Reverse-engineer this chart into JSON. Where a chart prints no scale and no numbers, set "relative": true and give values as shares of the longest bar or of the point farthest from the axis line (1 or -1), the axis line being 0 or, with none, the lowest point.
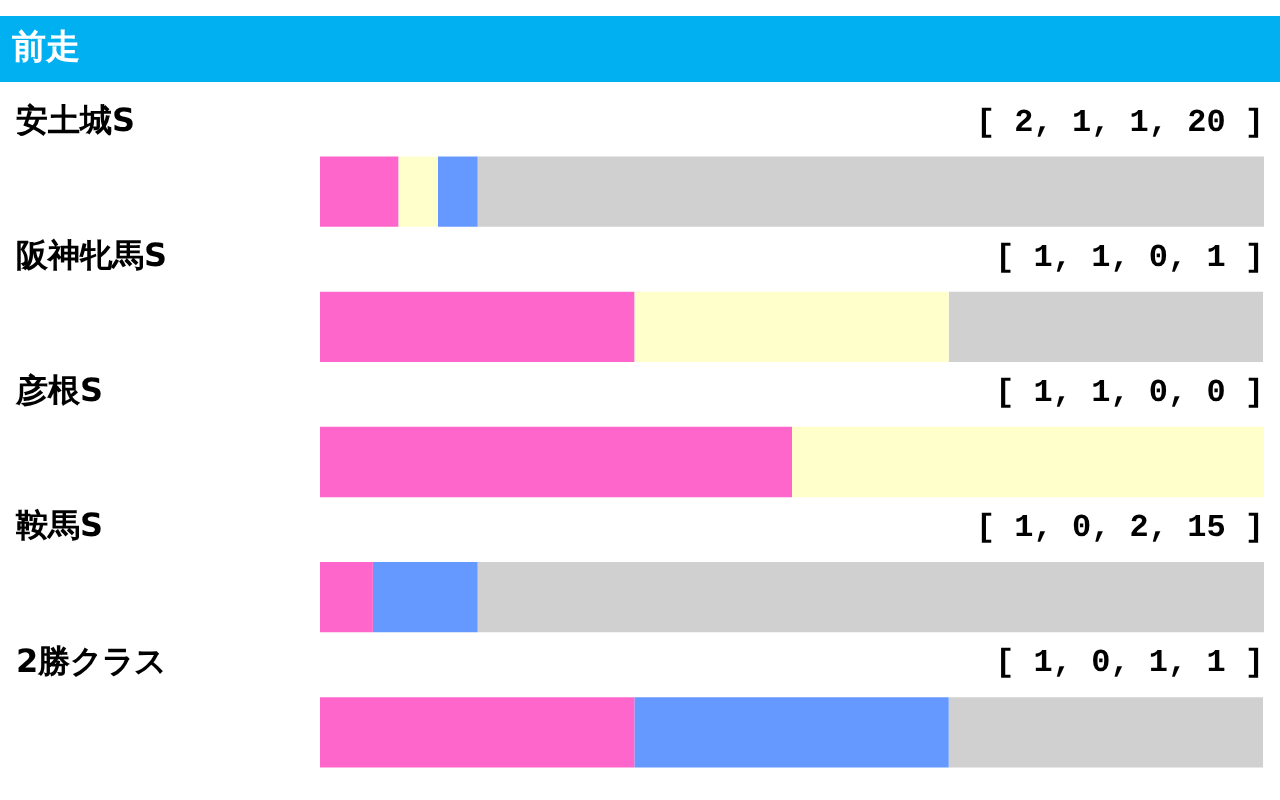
{
  "chart_data": {
    "type": "bar",
    "orientation": "horizontal",
    "stacked": true,
    "relative": true,
    "title": "前走",
    "legend": false,
    "categories": [
      "安土城S",
      "阪神牝馬S",
      "彦根S",
      "鞍馬S",
      "2勝クラス"
    ],
    "series": [
      {
        "color": "#ff66cc",
        "values": [
          0.083,
          0.333,
          0.5,
          0.056,
          0.333
        ]
      },
      {
        "color": "#ffffcc",
        "values": [
          0.042,
          0.333,
          0.5,
          0,
          0
        ]
      },
      {
        "color": "#6699ff",
        "values": [
          0.042,
          0,
          0,
          0.111,
          0.333
        ]
      },
      {
        "color": "#d0d0d0",
        "values": [
          0.833,
          0.333,
          0,
          0.833,
          0.333
        ]
      }
    ],
    "annotations": [
      "[ 2, 1, 1, 20 ]",
      "[ 1, 1, 0, 1 ]",
      "[ 1, 1, 0, 0 ]",
      "[ 1, 0, 2, 15 ]",
      "[ 1, 0, 1, 1 ]"
    ]
  }
}
